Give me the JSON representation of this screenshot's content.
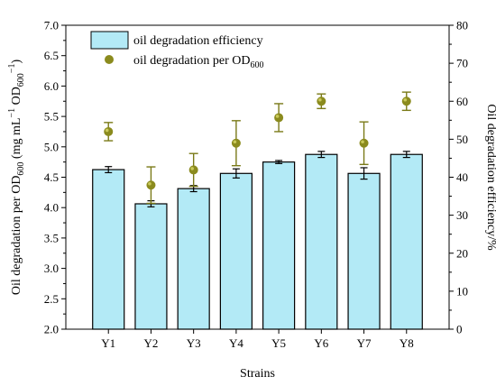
{
  "chart_data": {
    "type": "bar",
    "categories": [
      "Y1",
      "Y2",
      "Y3",
      "Y4",
      "Y5",
      "Y6",
      "Y7",
      "Y8"
    ],
    "xlabel": "Strains",
    "ylabel_left": {
      "main": "Oil degradation per OD",
      "sub": "600",
      "unit_open": " (mg mL",
      "unit_sup": "−1",
      "unit_mid": " OD",
      "unit_sub": "600",
      "unit_sup2": "−1",
      "unit_close": ")"
    },
    "ylabel_right": "Oil degradation efficiency/%",
    "ylim_left": [
      2.0,
      7.0
    ],
    "yticks_left": [
      "2.0",
      "2.5",
      "3.0",
      "3.5",
      "4.0",
      "4.5",
      "5.0",
      "5.5",
      "6.0",
      "6.5",
      "7.0"
    ],
    "ylim_right": [
      0,
      80
    ],
    "yticks_right": [
      "0",
      "10",
      "20",
      "30",
      "40",
      "50",
      "60",
      "70",
      "80"
    ],
    "series": [
      {
        "name": "oil degradation efficiency",
        "kind": "bar",
        "axis": "right",
        "values": [
          42.0,
          33.0,
          37.0,
          41.0,
          44.0,
          46.0,
          41.0,
          46.0
        ],
        "errors": [
          0.8,
          0.8,
          0.8,
          1.2,
          0.4,
          0.8,
          1.5,
          0.8
        ]
      },
      {
        "name": "oil degradation per OD",
        "name_sub": "600",
        "kind": "scatter",
        "axis": "left",
        "values": [
          5.25,
          4.37,
          4.62,
          5.06,
          5.48,
          5.75,
          5.06,
          5.75
        ],
        "errors": [
          0.15,
          0.3,
          0.27,
          0.37,
          0.23,
          0.12,
          0.35,
          0.15
        ]
      }
    ],
    "legend_position": "top-left",
    "grid": false,
    "colors": {
      "bar_fill": "#b3eaf6",
      "bar_stroke": "#000000",
      "point": "#8b8b1e",
      "point_highlight": "#c9c95a",
      "error_bar": "#7a7a18"
    }
  }
}
